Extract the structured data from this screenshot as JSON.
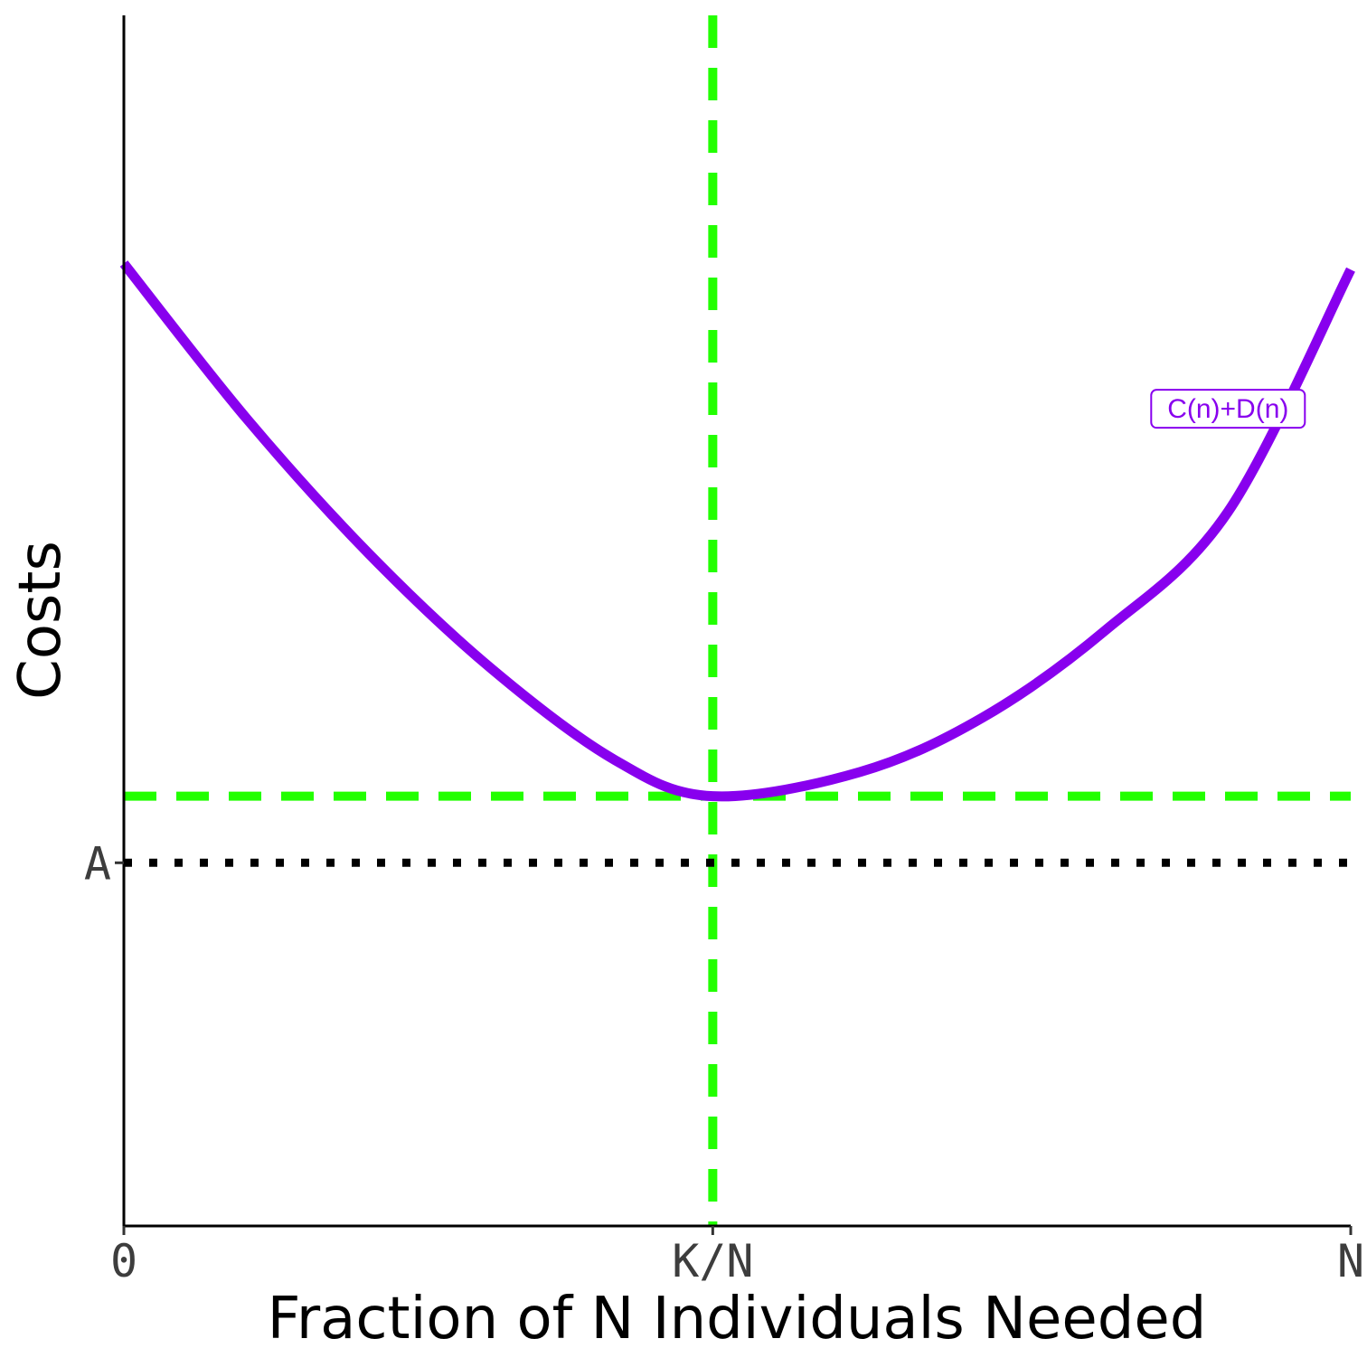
{
  "chart_data": {
    "type": "line",
    "title": "",
    "xlabel": "Fraction of N Individuals Needed",
    "ylabel": "Costs",
    "x_ticks": [
      "0",
      "K/N",
      "N"
    ],
    "y_ticks": [
      "A"
    ],
    "xlim": [
      0,
      1
    ],
    "ylim": [
      0,
      1
    ],
    "grid": false,
    "series": [
      {
        "name": "C(n)+D(n)",
        "color": "#8800ee",
        "x": [
          0,
          0.1,
          0.2,
          0.3,
          0.4,
          0.48,
          0.6,
          0.7,
          0.8,
          0.9,
          1.0
        ],
        "y": [
          0.795,
          0.667,
          0.555,
          0.46,
          0.385,
          0.355,
          0.375,
          0.42,
          0.492,
          0.59,
          0.79
        ]
      }
    ],
    "reference_lines": [
      {
        "orientation": "vertical",
        "at": "K/N",
        "x": 0.48,
        "style": "dashed",
        "color": "#22ff00"
      },
      {
        "orientation": "horizontal",
        "y": 0.355,
        "style": "dashed",
        "color": "#22ff00"
      },
      {
        "orientation": "horizontal",
        "at": "A",
        "y": 0.3,
        "style": "dotted",
        "color": "#000000"
      }
    ],
    "annotations": [
      {
        "text": "C(n)+D(n)",
        "x": 0.9,
        "y": 0.675,
        "color": "#8800ee",
        "boxed": true
      }
    ]
  }
}
